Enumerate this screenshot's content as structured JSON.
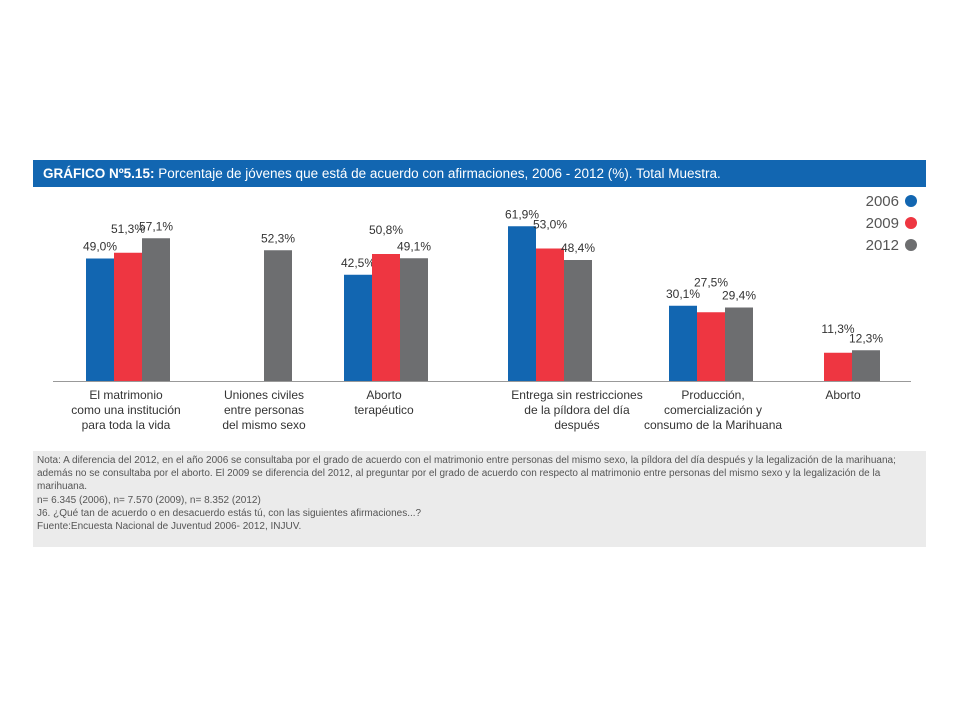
{
  "header": {
    "label": "GRÁFICO Nº5.15:",
    "text": "Porcentaje de jóvenes que está de acuerdo con afirmaciones, 2006 - 2012 (%). Total Muestra."
  },
  "colors": {
    "2006": "#1266b1",
    "2009": "#ee3641",
    "2012": "#6d6e70",
    "axis": "#999999"
  },
  "chart_data": {
    "type": "bar",
    "title": "Porcentaje de jóvenes que está de acuerdo con afirmaciones, 2006 - 2012 (%). Total Muestra.",
    "categories": [
      [
        "El matrimonio",
        "como una institución",
        "para toda la vida"
      ],
      [
        "Uniones civiles",
        "entre personas",
        "del mismo sexo"
      ],
      [
        "Aborto",
        "terapéutico"
      ],
      [
        "Entrega sin restricciones",
        "de la píldora del día",
        "después"
      ],
      [
        "Producción,",
        "comercialización y",
        "consumo de la Marihuana"
      ],
      [
        "Aborto"
      ]
    ],
    "series": [
      {
        "name": "2006",
        "values": [
          49.0,
          null,
          42.5,
          61.9,
          30.1,
          null
        ],
        "labels": [
          "49,0%",
          "",
          "42,5%",
          "61,9%",
          "30,1%",
          ""
        ]
      },
      {
        "name": "2009",
        "values": [
          51.3,
          null,
          50.8,
          53.0,
          27.5,
          11.3
        ],
        "labels": [
          "51,3%",
          "",
          "50,8%",
          "53,0%",
          "27,5%",
          "11,3%"
        ]
      },
      {
        "name": "2012",
        "values": [
          57.1,
          52.3,
          49.1,
          48.4,
          29.4,
          12.3
        ],
        "labels": [
          "57,1%",
          "52,3%",
          "49,1%",
          "48,4%",
          "29,4%",
          "12,3%"
        ]
      }
    ],
    "ylim": [
      0,
      100
    ],
    "legend": "top-right",
    "grid": false
  },
  "notes": [
    "Nota: A diferencia del 2012, en el año 2006 se consultaba por el grado de acuerdo con el matrimonio entre personas del mismo sexo, la píldora del día después y la legalización de la marihuana; además no se consultaba por el aborto. El 2009 se diferencia del 2012, al preguntar por el grado de acuerdo con respecto al matrimonio entre personas del mismo sexo y la legalización de la marihuana.",
    "n= 6.345 (2006), n= 7.570 (2009), n= 8.352 (2012)",
    "J6. ¿Qué tan de acuerdo o en desacuerdo estás tú, con las siguientes afirmaciones...?",
    "Fuente:Encuesta Nacional de Juventud 2006- 2012, INJUV."
  ]
}
